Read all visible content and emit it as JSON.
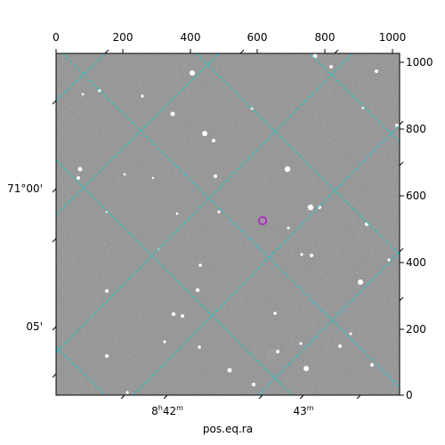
{
  "image": {
    "description_name": "astronomical-star-field",
    "pixel_range": [
      0,
      1024
    ]
  },
  "axes": {
    "top_ticks": [
      "0",
      "200",
      "400",
      "600",
      "800",
      "1000"
    ],
    "right_ticks": [
      "1000",
      "800",
      "600",
      "400",
      "200",
      "0"
    ],
    "left_ticks": [
      "71°00'",
      "05'"
    ],
    "bottom_ticks": [
      "8h42m",
      "43m"
    ],
    "xlabel": "pos.eq.ra"
  },
  "colors": {
    "grid": "#17c7c7",
    "marker": "#b027c8",
    "sky": "#6e6e6e"
  }
}
